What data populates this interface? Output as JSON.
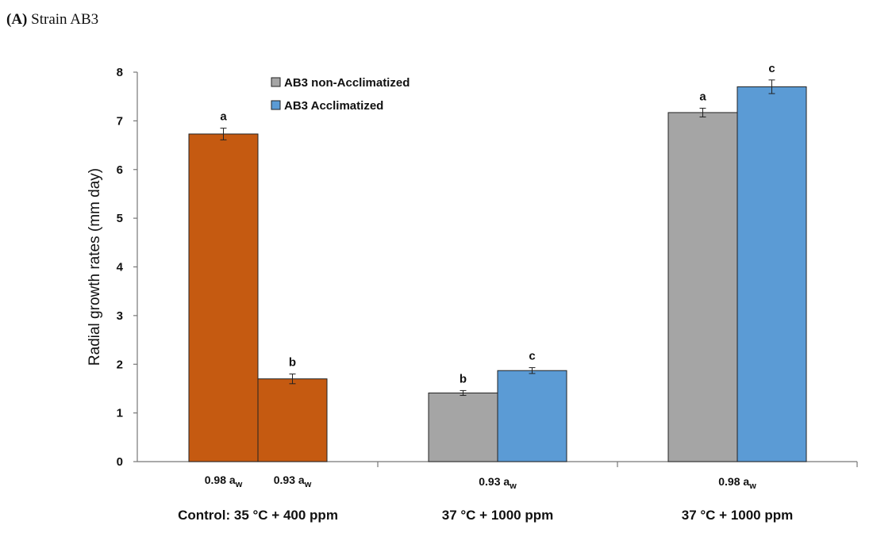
{
  "panel": {
    "label": "(A)",
    "title": "Strain AB3"
  },
  "chart_data": {
    "type": "bar",
    "ylabel": "Radial growth rates  (mm day)",
    "ylim": [
      0,
      8
    ],
    "yticks": [
      0,
      1,
      2,
      3,
      4,
      5,
      6,
      7,
      8
    ],
    "legend": {
      "position": "top-center",
      "entries": [
        {
          "name": "AB3 non-Acclimatized",
          "color": "#a5a5a5"
        },
        {
          "name": "AB3 Acclimatized",
          "color": "#5b9bd5"
        }
      ]
    },
    "groups": [
      {
        "label": "Control: 35 °C + 400 ppm",
        "bars": [
          {
            "value": 6.73,
            "error": 0.12,
            "letter": "a",
            "color": "#c55a11",
            "label_main": "0.98 a",
            "label_sub": "w"
          },
          {
            "value": 1.7,
            "error": 0.1,
            "letter": "b",
            "color": "#c55a11",
            "label_main": "0.93 a",
            "label_sub": "w"
          }
        ]
      },
      {
        "label": "37 °C + 1000 ppm",
        "sublabel_main": "0.93 a",
        "sublabel_sub": "w",
        "bars": [
          {
            "value": 1.41,
            "error": 0.05,
            "letter": "b",
            "color": "#a5a5a5",
            "series": "AB3 non-Acclimatized"
          },
          {
            "value": 1.87,
            "error": 0.06,
            "letter": "c",
            "color": "#5b9bd5",
            "series": "AB3 Acclimatized"
          }
        ]
      },
      {
        "label": "37 °C + 1000 ppm",
        "sublabel_main": "0.98 a",
        "sublabel_sub": "w",
        "bars": [
          {
            "value": 7.17,
            "error": 0.09,
            "letter": "a",
            "color": "#a5a5a5",
            "series": "AB3 non-Acclimatized"
          },
          {
            "value": 7.7,
            "error": 0.14,
            "letter": "c",
            "color": "#5b9bd5",
            "series": "AB3 Acclimatized"
          }
        ]
      }
    ]
  }
}
